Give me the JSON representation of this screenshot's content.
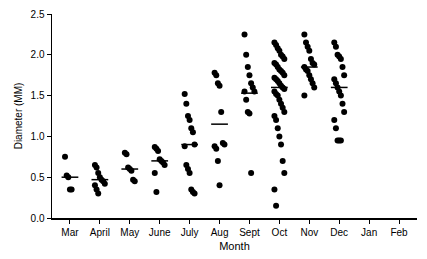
{
  "chart_data": {
    "type": "dot",
    "x_label": "Month",
    "y_label": "Diameter (MM)",
    "categories": [
      "Mar",
      "April",
      "May",
      "June",
      "July",
      "Aug",
      "Sept",
      "Oct",
      "Nov",
      "Dec",
      "Jan",
      "Feb"
    ],
    "values": [
      [
        0.75,
        0.52,
        0.5,
        0.35,
        0.35
      ],
      [
        0.65,
        0.62,
        0.55,
        0.5,
        0.47,
        0.45,
        0.42,
        0.4,
        0.35,
        0.3
      ],
      [
        0.8,
        0.78,
        0.62,
        0.6,
        0.58,
        0.47,
        0.45
      ],
      [
        0.87,
        0.85,
        0.82,
        0.72,
        0.7,
        0.68,
        0.65,
        0.55,
        0.32
      ],
      [
        1.52,
        1.4,
        1.25,
        1.2,
        1.1,
        1.05,
        0.9,
        0.88,
        0.65,
        0.6,
        0.55,
        0.35,
        0.32,
        0.3
      ],
      [
        1.78,
        1.75,
        1.65,
        1.62,
        1.3,
        0.92,
        0.9,
        0.88,
        0.85,
        0.7,
        0.4
      ],
      [
        2.25,
        2.0,
        1.85,
        1.75,
        1.65,
        1.6,
        1.55,
        1.55,
        1.45,
        1.3,
        1.28,
        0.55
      ],
      [
        2.15,
        2.12,
        2.08,
        2.05,
        2.0,
        1.98,
        1.95,
        1.9,
        1.88,
        1.85,
        1.82,
        1.8,
        1.78,
        1.75,
        1.72,
        1.7,
        1.68,
        1.65,
        1.62,
        1.6,
        1.58,
        1.55,
        1.52,
        1.5,
        1.45,
        1.4,
        1.35,
        1.3,
        1.25,
        1.2,
        1.1,
        1.0,
        0.9,
        0.7,
        0.55,
        0.35,
        0.15
      ],
      [
        2.25,
        2.15,
        2.1,
        2.05,
        1.95,
        1.9,
        1.88,
        1.85,
        1.82,
        1.8,
        1.75,
        1.7,
        1.65,
        1.6,
        1.5
      ],
      [
        2.15,
        2.1,
        2.0,
        1.98,
        1.95,
        1.85,
        1.75,
        1.7,
        1.65,
        1.6,
        1.55,
        1.5,
        1.4,
        1.3,
        1.2,
        1.1,
        0.95,
        0.95,
        0.95
      ],
      [],
      []
    ],
    "means": [
      0.5,
      0.47,
      0.6,
      0.7,
      0.9,
      1.15,
      1.53,
      1.6,
      1.85,
      1.6,
      null,
      null
    ],
    "color": "#000000",
    "marker": "circle",
    "ylim": [
      0,
      2.5
    ],
    "yticks": [
      {
        "value": 0,
        "label": "0.0"
      },
      {
        "value": 0.5,
        "label": "0.5"
      },
      {
        "value": 1,
        "label": "1.0"
      },
      {
        "value": 1.5,
        "label": "1.5"
      },
      {
        "value": 2,
        "label": "2.0"
      },
      {
        "value": 2.5,
        "label": "2.5"
      }
    ],
    "grid": false
  }
}
